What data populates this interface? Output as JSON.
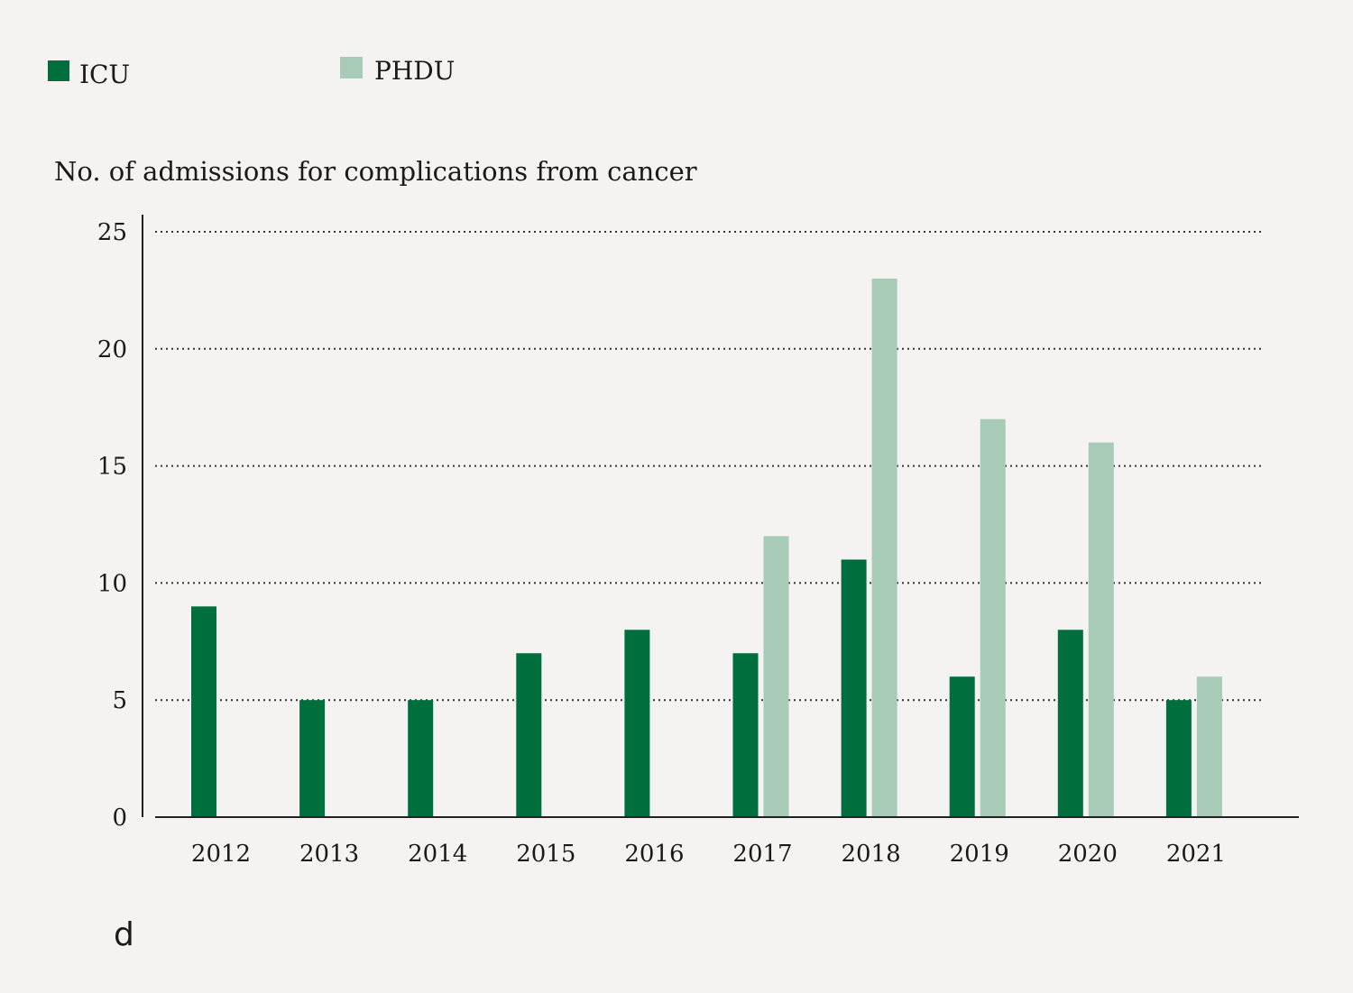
{
  "chart_data": {
    "type": "bar",
    "title": "",
    "ylabel": "No. of admissions for complications from cancer",
    "xlabel": "",
    "ylim": [
      0,
      25
    ],
    "yticks": [
      0,
      5,
      10,
      15,
      20,
      25
    ],
    "grid": "horizontal dotted",
    "legend_position": "top-left",
    "categories": [
      "2012",
      "2013",
      "2014",
      "2015",
      "2016",
      "2017",
      "2018",
      "2019",
      "2020",
      "2021"
    ],
    "series": [
      {
        "name": "ICU",
        "color": "#006e3d",
        "values": [
          9,
          5,
          5,
          7,
          8,
          7,
          11,
          6,
          8,
          5
        ]
      },
      {
        "name": "PHDU",
        "color": "#a8cbb7",
        "values": [
          0,
          0,
          0,
          0,
          0,
          12,
          23,
          17,
          16,
          6
        ]
      }
    ],
    "panel_label": "d"
  }
}
